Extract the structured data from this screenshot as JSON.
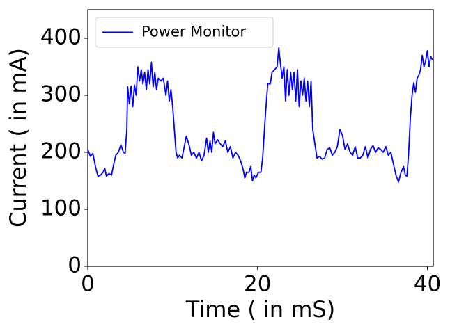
{
  "chart_data": {
    "type": "line",
    "xlabel": "Time ( in mS)",
    "ylabel": "Current ( in mA)",
    "xlim": [
      0,
      40.7
    ],
    "ylim": [
      0,
      450
    ],
    "xticks": [
      0,
      20,
      40
    ],
    "yticks": [
      0,
      100,
      200,
      300,
      400
    ],
    "grid": false,
    "legend": "upper left",
    "x": [
      0,
      0.3,
      0.6,
      0.9,
      1.2,
      1.5,
      1.8,
      2.0,
      2.2,
      2.5,
      2.8,
      3.0,
      3.3,
      3.6,
      3.9,
      4.2,
      4.4,
      4.6,
      4.7,
      4.9,
      5.1,
      5.3,
      5.5,
      5.7,
      5.9,
      6.1,
      6.3,
      6.5,
      6.7,
      6.9,
      7.1,
      7.3,
      7.5,
      7.7,
      7.9,
      8.1,
      8.3,
      8.6,
      8.9,
      9.2,
      9.4,
      9.6,
      9.8,
      10.0,
      10.2,
      10.4,
      10.6,
      10.8,
      11.1,
      11.3,
      11.6,
      11.9,
      12.2,
      12.5,
      12.8,
      13.1,
      13.4,
      13.7,
      14.0,
      14.2,
      14.4,
      14.6,
      14.8,
      15.0,
      15.3,
      15.6,
      15.9,
      16.2,
      16.5,
      16.8,
      17.1,
      17.4,
      17.7,
      18.0,
      18.3,
      18.5,
      18.7,
      19.0,
      19.2,
      19.4,
      19.6,
      19.8,
      20.1,
      20.4,
      20.6,
      20.9,
      21.2,
      21.5,
      21.7,
      22.0,
      22.3,
      22.5,
      22.7,
      22.9,
      23.1,
      23.3,
      23.5,
      23.7,
      23.9,
      24.1,
      24.3,
      24.5,
      24.7,
      24.9,
      25.1,
      25.3,
      25.5,
      25.7,
      25.9,
      26.1,
      26.3,
      26.5,
      26.8,
      27.0,
      27.3,
      27.6,
      27.9,
      28.2,
      28.5,
      28.8,
      29.1,
      29.4,
      29.7,
      30.0,
      30.3,
      30.6,
      30.9,
      31.2,
      31.5,
      31.8,
      32.1,
      32.4,
      32.7,
      33.0,
      33.3,
      33.6,
      33.9,
      34.2,
      34.5,
      34.8,
      35.1,
      35.4,
      35.7,
      36.0,
      36.3,
      36.6,
      36.9,
      37.2,
      37.4,
      37.6,
      37.8,
      38.0,
      38.2,
      38.4,
      38.6,
      38.8,
      39.0,
      39.2,
      39.4,
      39.6,
      39.8,
      40.0,
      40.2,
      40.4,
      40.6
    ],
    "series": [
      {
        "name": "Power Monitor",
        "color": "#0000ff",
        "values": [
          205,
          193,
          198,
          175,
          158,
          160,
          165,
          172,
          158,
          163,
          160,
          175,
          195,
          200,
          213,
          200,
          198,
          240,
          315,
          285,
          316,
          280,
          318,
          300,
          350,
          325,
          345,
          320,
          340,
          310,
          345,
          320,
          358,
          315,
          340,
          310,
          330,
          325,
          330,
          300,
          325,
          290,
          310,
          280,
          240,
          200,
          190,
          195,
          190,
          205,
          228,
          215,
          195,
          200,
          190,
          200,
          185,
          195,
          225,
          200,
          220,
          200,
          235,
          215,
          222,
          215,
          210,
          220,
          200,
          210,
          190,
          200,
          195,
          185,
          170,
          155,
          165,
          165,
          175,
          150,
          160,
          155,
          165,
          165,
          190,
          260,
          320,
          320,
          340,
          345,
          350,
          383,
          355,
          330,
          350,
          290,
          345,
          300,
          340,
          310,
          340,
          290,
          345,
          280,
          325,
          300,
          330,
          290,
          325,
          280,
          325,
          240,
          210,
          190,
          193,
          188,
          190,
          205,
          208,
          195,
          200,
          210,
          240,
          230,
          205,
          215,
          200,
          195,
          210,
          190,
          190,
          195,
          210,
          190,
          205,
          212,
          200,
          208,
          205,
          200,
          210,
          195,
          200,
          180,
          160,
          148,
          165,
          175,
          160,
          158,
          200,
          260,
          300,
          322,
          305,
          330,
          335,
          345,
          370,
          350,
          360,
          378,
          350,
          368,
          362
        ]
      }
    ]
  }
}
